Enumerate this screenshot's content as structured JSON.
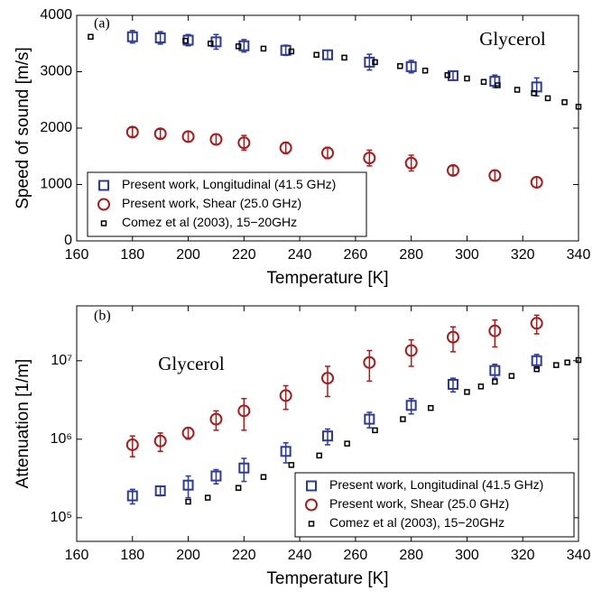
{
  "chart_data": [
    {
      "type": "scatter",
      "label": "(a)",
      "annotation": "Glycerol",
      "xlabel": "Temperature [K]",
      "ylabel": "Speed of sound [m/s]",
      "xlim": [
        160,
        340
      ],
      "xticks": [
        160,
        180,
        200,
        220,
        240,
        260,
        280,
        300,
        320,
        340
      ],
      "ylim": [
        0,
        4000
      ],
      "yticks": [
        0,
        1000,
        2000,
        3000,
        4000
      ],
      "log": false,
      "legend": "lower left",
      "series": [
        {
          "name": "Present work, Longitudinal (41.5 GHz)",
          "color": "#2b3a9c",
          "marker": "square",
          "x": [
            180,
            190,
            200,
            210,
            220,
            235,
            250,
            265,
            280,
            295,
            310,
            325
          ],
          "values": [
            3620,
            3600,
            3560,
            3530,
            3460,
            3380,
            3300,
            3170,
            3090,
            2930,
            2830,
            2730
          ],
          "errors": [
            110,
            110,
            100,
            130,
            110,
            90,
            80,
            140,
            110,
            80,
            110,
            160
          ]
        },
        {
          "name": "Present work, Shear (25.0 GHz)",
          "color": "#a81c1c",
          "marker": "circle",
          "x": [
            180,
            190,
            200,
            210,
            220,
            235,
            250,
            265,
            280,
            295,
            310,
            325
          ],
          "values": [
            1930,
            1900,
            1850,
            1800,
            1740,
            1650,
            1560,
            1470,
            1380,
            1250,
            1160,
            1040
          ],
          "errors": [
            80,
            80,
            90,
            90,
            130,
            100,
            100,
            140,
            140,
            80,
            90,
            90
          ]
        },
        {
          "name": "Comez et al (2003), 15−20GHz",
          "color": "#000000",
          "marker": "point",
          "x": [
            165,
            199,
            208,
            218,
            227,
            237,
            246,
            256,
            267,
            276,
            285,
            293,
            300,
            306,
            311,
            318,
            324,
            329,
            335,
            340
          ],
          "values": [
            3620,
            3550,
            3500,
            3450,
            3410,
            3360,
            3300,
            3250,
            3170,
            3100,
            3020,
            2940,
            2880,
            2820,
            2760,
            2680,
            2620,
            2530,
            2460,
            2380
          ]
        }
      ]
    },
    {
      "type": "scatter",
      "label": "(b)",
      "annotation": "Glycerol",
      "xlabel": "Temperature [K]",
      "ylabel": "Attenuation [1/m]",
      "xlim": [
        160,
        340
      ],
      "xticks": [
        160,
        180,
        200,
        220,
        240,
        260,
        280,
        300,
        320,
        340
      ],
      "ylim": [
        50000,
        50000000
      ],
      "yticks": [
        {
          "value": 100000,
          "label": "10⁵"
        },
        {
          "value": 1000000,
          "label": "10⁶"
        },
        {
          "value": 10000000,
          "label": "10⁷"
        }
      ],
      "log": true,
      "legend": "lower right",
      "series": [
        {
          "name": "Present work, Longitudinal (41.5 GHz)",
          "color": "#2b3a9c",
          "marker": "square",
          "x": [
            180,
            190,
            200,
            210,
            220,
            235,
            250,
            265,
            280,
            295,
            310,
            325
          ],
          "values": [
            190000,
            220000,
            260000,
            340000,
            430000,
            700000,
            1100000,
            1800000,
            2700000,
            5000000,
            7500000,
            10000000
          ],
          "errors": [
            40000,
            30000,
            80000,
            70000,
            140000,
            200000,
            250000,
            400000,
            600000,
            1000000,
            1500000,
            2000000
          ]
        },
        {
          "name": "Present work, Shear (25.0 GHz)",
          "color": "#a81c1c",
          "marker": "circle",
          "x": [
            180,
            190,
            200,
            210,
            220,
            235,
            250,
            265,
            280,
            295,
            310,
            325
          ],
          "values": [
            850000,
            950000,
            1200000,
            1800000,
            2300000,
            3600000,
            6000000,
            9500000,
            13500000,
            20000000,
            24000000,
            30000000
          ],
          "errors": [
            250000,
            250000,
            200000,
            500000,
            1000000,
            1200000,
            2500000,
            4000000,
            5000000,
            7000000,
            9000000,
            8000000
          ]
        },
        {
          "name": "Comez et al (2003), 15−20GHz",
          "color": "#000000",
          "marker": "point",
          "x": [
            200,
            207,
            218,
            227,
            237,
            247,
            257,
            267,
            277,
            287,
            300,
            305,
            310,
            316,
            325,
            332,
            336,
            340
          ],
          "values": [
            160000,
            180000,
            240000,
            330000,
            470000,
            620000,
            880000,
            1300000,
            1800000,
            2500000,
            4000000,
            4700000,
            5400000,
            6400000,
            7800000,
            8800000,
            9500000,
            10200000
          ]
        }
      ]
    }
  ]
}
